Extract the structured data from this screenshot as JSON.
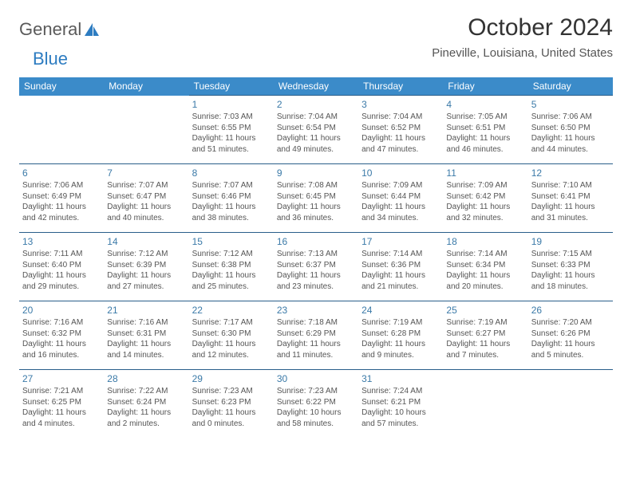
{
  "logo": {
    "text1": "General",
    "text2": "Blue"
  },
  "title": "October 2024",
  "location": "Pineville, Louisiana, United States",
  "colors": {
    "header_bg": "#3b8bc9",
    "header_text": "#ffffff",
    "border": "#295e8a",
    "daynum": "#3b7aa8",
    "body_text": "#555555",
    "logo_gray": "#5a5a5a",
    "logo_blue": "#2d7cc1"
  },
  "weekdays": [
    "Sunday",
    "Monday",
    "Tuesday",
    "Wednesday",
    "Thursday",
    "Friday",
    "Saturday"
  ],
  "weeks": [
    [
      null,
      null,
      {
        "n": "1",
        "sr": "Sunrise: 7:03 AM",
        "ss": "Sunset: 6:55 PM",
        "dl": "Daylight: 11 hours and 51 minutes."
      },
      {
        "n": "2",
        "sr": "Sunrise: 7:04 AM",
        "ss": "Sunset: 6:54 PM",
        "dl": "Daylight: 11 hours and 49 minutes."
      },
      {
        "n": "3",
        "sr": "Sunrise: 7:04 AM",
        "ss": "Sunset: 6:52 PM",
        "dl": "Daylight: 11 hours and 47 minutes."
      },
      {
        "n": "4",
        "sr": "Sunrise: 7:05 AM",
        "ss": "Sunset: 6:51 PM",
        "dl": "Daylight: 11 hours and 46 minutes."
      },
      {
        "n": "5",
        "sr": "Sunrise: 7:06 AM",
        "ss": "Sunset: 6:50 PM",
        "dl": "Daylight: 11 hours and 44 minutes."
      }
    ],
    [
      {
        "n": "6",
        "sr": "Sunrise: 7:06 AM",
        "ss": "Sunset: 6:49 PM",
        "dl": "Daylight: 11 hours and 42 minutes."
      },
      {
        "n": "7",
        "sr": "Sunrise: 7:07 AM",
        "ss": "Sunset: 6:47 PM",
        "dl": "Daylight: 11 hours and 40 minutes."
      },
      {
        "n": "8",
        "sr": "Sunrise: 7:07 AM",
        "ss": "Sunset: 6:46 PM",
        "dl": "Daylight: 11 hours and 38 minutes."
      },
      {
        "n": "9",
        "sr": "Sunrise: 7:08 AM",
        "ss": "Sunset: 6:45 PM",
        "dl": "Daylight: 11 hours and 36 minutes."
      },
      {
        "n": "10",
        "sr": "Sunrise: 7:09 AM",
        "ss": "Sunset: 6:44 PM",
        "dl": "Daylight: 11 hours and 34 minutes."
      },
      {
        "n": "11",
        "sr": "Sunrise: 7:09 AM",
        "ss": "Sunset: 6:42 PM",
        "dl": "Daylight: 11 hours and 32 minutes."
      },
      {
        "n": "12",
        "sr": "Sunrise: 7:10 AM",
        "ss": "Sunset: 6:41 PM",
        "dl": "Daylight: 11 hours and 31 minutes."
      }
    ],
    [
      {
        "n": "13",
        "sr": "Sunrise: 7:11 AM",
        "ss": "Sunset: 6:40 PM",
        "dl": "Daylight: 11 hours and 29 minutes."
      },
      {
        "n": "14",
        "sr": "Sunrise: 7:12 AM",
        "ss": "Sunset: 6:39 PM",
        "dl": "Daylight: 11 hours and 27 minutes."
      },
      {
        "n": "15",
        "sr": "Sunrise: 7:12 AM",
        "ss": "Sunset: 6:38 PM",
        "dl": "Daylight: 11 hours and 25 minutes."
      },
      {
        "n": "16",
        "sr": "Sunrise: 7:13 AM",
        "ss": "Sunset: 6:37 PM",
        "dl": "Daylight: 11 hours and 23 minutes."
      },
      {
        "n": "17",
        "sr": "Sunrise: 7:14 AM",
        "ss": "Sunset: 6:36 PM",
        "dl": "Daylight: 11 hours and 21 minutes."
      },
      {
        "n": "18",
        "sr": "Sunrise: 7:14 AM",
        "ss": "Sunset: 6:34 PM",
        "dl": "Daylight: 11 hours and 20 minutes."
      },
      {
        "n": "19",
        "sr": "Sunrise: 7:15 AM",
        "ss": "Sunset: 6:33 PM",
        "dl": "Daylight: 11 hours and 18 minutes."
      }
    ],
    [
      {
        "n": "20",
        "sr": "Sunrise: 7:16 AM",
        "ss": "Sunset: 6:32 PM",
        "dl": "Daylight: 11 hours and 16 minutes."
      },
      {
        "n": "21",
        "sr": "Sunrise: 7:16 AM",
        "ss": "Sunset: 6:31 PM",
        "dl": "Daylight: 11 hours and 14 minutes."
      },
      {
        "n": "22",
        "sr": "Sunrise: 7:17 AM",
        "ss": "Sunset: 6:30 PM",
        "dl": "Daylight: 11 hours and 12 minutes."
      },
      {
        "n": "23",
        "sr": "Sunrise: 7:18 AM",
        "ss": "Sunset: 6:29 PM",
        "dl": "Daylight: 11 hours and 11 minutes."
      },
      {
        "n": "24",
        "sr": "Sunrise: 7:19 AM",
        "ss": "Sunset: 6:28 PM",
        "dl": "Daylight: 11 hours and 9 minutes."
      },
      {
        "n": "25",
        "sr": "Sunrise: 7:19 AM",
        "ss": "Sunset: 6:27 PM",
        "dl": "Daylight: 11 hours and 7 minutes."
      },
      {
        "n": "26",
        "sr": "Sunrise: 7:20 AM",
        "ss": "Sunset: 6:26 PM",
        "dl": "Daylight: 11 hours and 5 minutes."
      }
    ],
    [
      {
        "n": "27",
        "sr": "Sunrise: 7:21 AM",
        "ss": "Sunset: 6:25 PM",
        "dl": "Daylight: 11 hours and 4 minutes."
      },
      {
        "n": "28",
        "sr": "Sunrise: 7:22 AM",
        "ss": "Sunset: 6:24 PM",
        "dl": "Daylight: 11 hours and 2 minutes."
      },
      {
        "n": "29",
        "sr": "Sunrise: 7:23 AM",
        "ss": "Sunset: 6:23 PM",
        "dl": "Daylight: 11 hours and 0 minutes."
      },
      {
        "n": "30",
        "sr": "Sunrise: 7:23 AM",
        "ss": "Sunset: 6:22 PM",
        "dl": "Daylight: 10 hours and 58 minutes."
      },
      {
        "n": "31",
        "sr": "Sunrise: 7:24 AM",
        "ss": "Sunset: 6:21 PM",
        "dl": "Daylight: 10 hours and 57 minutes."
      },
      null,
      null
    ]
  ]
}
